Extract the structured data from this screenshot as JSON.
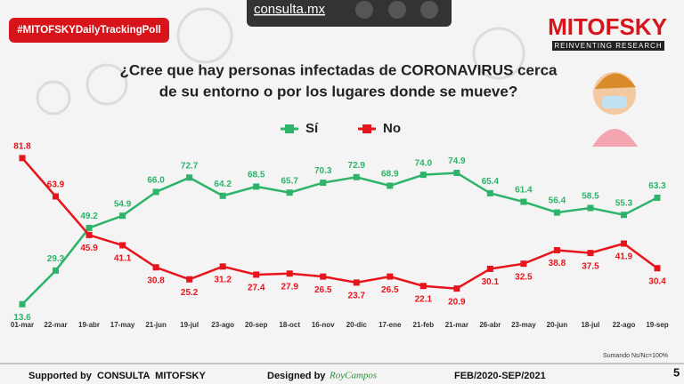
{
  "chart_data": {
    "type": "line",
    "badge": "#MITOFSKYDailyTrackingPoll",
    "site": "consulta.mx",
    "brand": "MITOFSKY",
    "brand_tagline": "REINVENTING RESEARCH",
    "title_lines": [
      "¿Cree que hay personas infectadas de CORONAVIRUS cerca",
      "de su entorno o por los lugares donde se mueve?"
    ],
    "categories": [
      "01-mar",
      "22-mar",
      "19-abr",
      "17-may",
      "21-jun",
      "19-jul",
      "23-ago",
      "20-sep",
      "18-oct",
      "16-nov",
      "20-dic",
      "17-ene",
      "21-feb",
      "21-mar",
      "26-abr",
      "23-may",
      "20-jun",
      "18-jul",
      "22-ago",
      "19-sep"
    ],
    "series": [
      {
        "name": "Sí",
        "color": "#2eb36a",
        "values": [
          13.6,
          29.3,
          49.2,
          54.9,
          66.0,
          72.7,
          64.2,
          68.5,
          65.7,
          70.3,
          72.9,
          68.9,
          74.0,
          74.9,
          65.4,
          61.4,
          56.4,
          58.5,
          55.3,
          63.3
        ],
        "value_labels": [
          "13.6",
          "29.3",
          "49.2",
          "54.9",
          "66.0",
          "72.7",
          "64.2",
          "68.5",
          "65.7",
          "70.3",
          "72.9",
          "68.9",
          "74.0",
          "74.9",
          "65.4",
          "61.4",
          "56.4",
          "58.5",
          "55.3",
          "63.3"
        ]
      },
      {
        "name": "No",
        "color": "#e8141b",
        "values": [
          81.8,
          63.9,
          45.9,
          41.1,
          30.8,
          25.2,
          31.2,
          27.4,
          27.9,
          26.5,
          23.7,
          26.5,
          22.1,
          20.9,
          30.1,
          32.5,
          38.8,
          37.5,
          41.9,
          30.4
        ],
        "value_labels": [
          "81.8",
          "63.9",
          "45.9",
          "41.1",
          "30.8",
          "25.2",
          "31.2",
          "27.4",
          "27.9",
          "26.5",
          "23.7",
          "26.5",
          "22.1",
          "20.9",
          "30.1",
          "32.5",
          "38.8",
          "37.5",
          "41.9",
          "30.4"
        ]
      }
    ],
    "ylim": [
      0,
      100
    ],
    "note": "Sumando Ns/Nc=100%",
    "footer_supported": "Supported by  CONSULTA  MITOFSKY",
    "footer_designed": "Designed by",
    "footer_designer": "RoyCampos",
    "footer_period": "FEB/2020-SEP/2021",
    "page_number": "5"
  }
}
